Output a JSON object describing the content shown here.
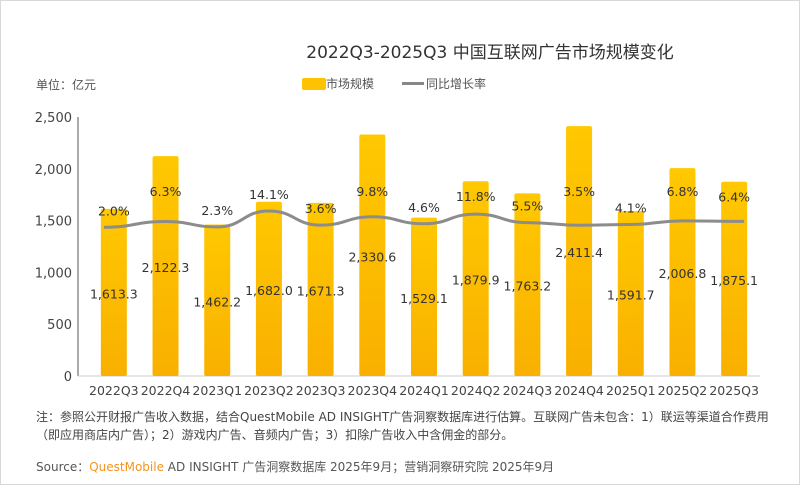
{
  "chart_data": {
    "type": "bar",
    "title": "2022Q3-2025Q3 中国互联网广告市场规模变化",
    "unit_label": "单位：亿元",
    "categories": [
      "2022Q3",
      "2022Q4",
      "2023Q1",
      "2023Q2",
      "2023Q3",
      "2023Q4",
      "2024Q1",
      "2024Q2",
      "2024Q3",
      "2024Q4",
      "2025Q1",
      "2025Q2",
      "2025Q3"
    ],
    "series": [
      {
        "name": "市场规模",
        "type": "bar",
        "values": [
          1613.3,
          2122.3,
          1462.2,
          1682.0,
          1671.3,
          2330.6,
          1529.1,
          1879.9,
          1763.2,
          2411.4,
          1591.7,
          2006.8,
          1875.1
        ],
        "labels": [
          "1,613.3",
          "2,122.3",
          "1,462.2",
          "1,682.0",
          "1,671.3",
          "2,330.6",
          "1,529.1",
          "1,879.9",
          "1,763.2",
          "2,411.4",
          "1,591.7",
          "2,006.8",
          "1,875.1"
        ]
      },
      {
        "name": "同比增长率",
        "type": "line",
        "values": [
          2.0,
          6.3,
          2.3,
          14.1,
          3.6,
          9.8,
          4.6,
          11.8,
          5.5,
          3.5,
          4.1,
          6.8,
          6.4
        ],
        "labels": [
          "2.0%",
          "6.3%",
          "2.3%",
          "14.1%",
          "3.6%",
          "9.8%",
          "4.6%",
          "11.8%",
          "5.5%",
          "3.5%",
          "4.1%",
          "6.8%",
          "6.4%"
        ]
      }
    ],
    "ylim": [
      0,
      2500
    ],
    "yticks": [
      0,
      500,
      1000,
      1500,
      2000,
      2500
    ],
    "ytick_labels": [
      "0",
      "500",
      "1,000",
      "1,500",
      "2,000",
      "2,500"
    ],
    "legend_position": "top",
    "grid": false,
    "colors": {
      "bar": "#FFC200",
      "bar_bottom": "#F9B000",
      "line": "#8C8C8C"
    }
  },
  "note": "注：参照公开财报广告收入数据，结合QuestMobile AD INSIGHT广告洞察数据库进行估算。互联网广告未包含：1）联运等渠道合作费用（即应用商店内广告）；2）游戏内广告、音频内广告；3）扣除广告收入中含佣金的部分。",
  "source": {
    "prefix": "Source：",
    "brand": "QuestMobile",
    "rest": " AD INSIGHT 广告洞察数据库 2025年9月；营销洞察研究院 2025年9月"
  }
}
